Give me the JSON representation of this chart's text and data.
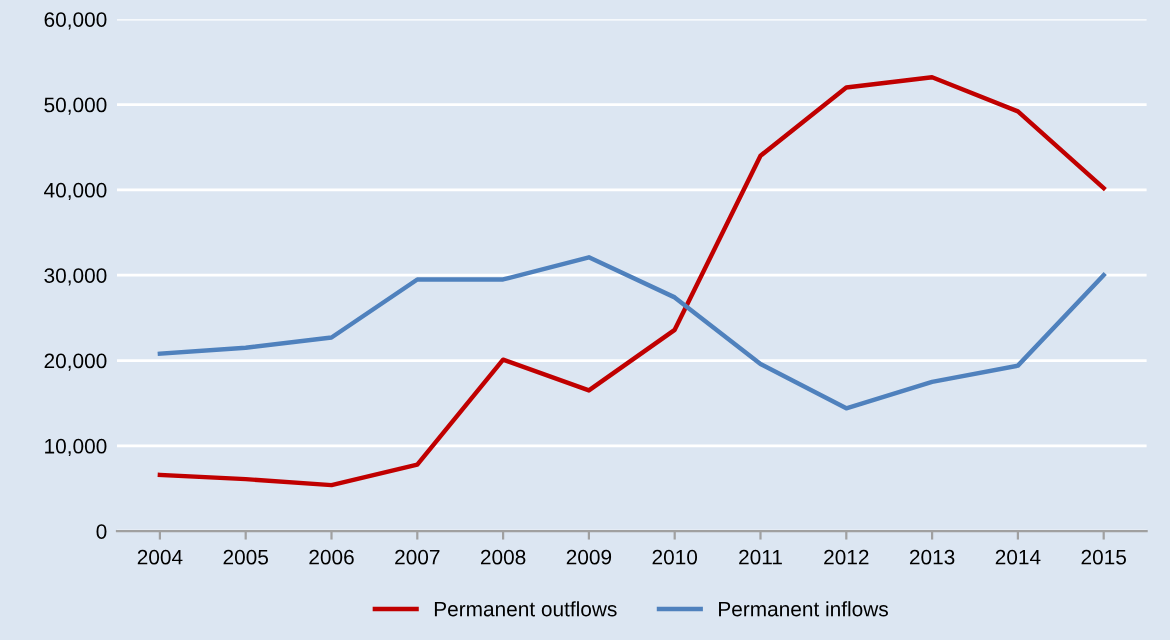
{
  "chart_data": {
    "type": "line",
    "categories": [
      "2004",
      "2005",
      "2006",
      "2007",
      "2008",
      "2009",
      "2010",
      "2011",
      "2012",
      "2013",
      "2014",
      "2015"
    ],
    "series": [
      {
        "name": "Permanent outflows",
        "color": "#c00000",
        "values": [
          6600,
          6100,
          5400,
          7800,
          20100,
          16500,
          23600,
          44000,
          52000,
          53200,
          49200,
          40200
        ]
      },
      {
        "name": "Permanent inflows",
        "color": "#4f81bd",
        "values": [
          20800,
          21500,
          22700,
          29500,
          29500,
          32100,
          27400,
          19600,
          14400,
          17500,
          19400,
          30000
        ]
      }
    ],
    "ylim": [
      0,
      60000
    ],
    "yticks": [
      0,
      {
        "value": 10000,
        "label": "10,000"
      },
      {
        "value": 20000,
        "label": "20,000"
      },
      {
        "value": 30000,
        "label": "30,000"
      },
      {
        "value": 40000,
        "label": "40,000"
      },
      {
        "value": 50000,
        "label": "50,000"
      },
      {
        "value": 60000,
        "label": "60,000"
      }
    ],
    "grid": "y",
    "legend": "bottom",
    "marker": "none",
    "line_style": "solid"
  }
}
